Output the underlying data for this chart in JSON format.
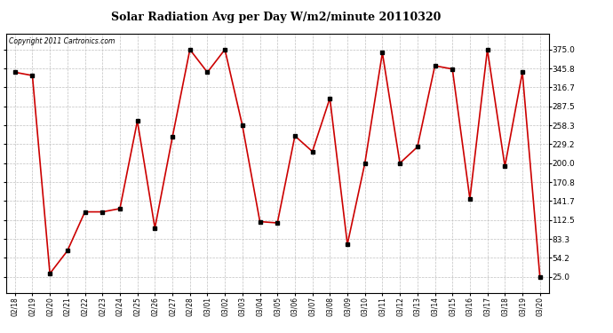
{
  "title": "Solar Radiation Avg per Day W/m2/minute 20110320",
  "copyright": "Copyright 2011 Cartronics.com",
  "dates": [
    "02/18",
    "02/19",
    "02/20",
    "02/21",
    "02/22",
    "02/23",
    "02/24",
    "02/25",
    "02/26",
    "02/27",
    "02/28",
    "03/01",
    "03/02",
    "03/03",
    "03/04",
    "03/05",
    "03/06",
    "03/07",
    "03/08",
    "03/09",
    "03/10",
    "03/11",
    "03/12",
    "03/13",
    "03/14",
    "03/15",
    "03/16",
    "03/17",
    "03/18",
    "03/19",
    "03/20"
  ],
  "values": [
    340,
    335,
    30,
    65,
    125,
    125,
    130,
    265,
    100,
    240,
    375,
    340,
    375,
    258,
    110,
    108,
    242,
    218,
    300,
    75,
    200,
    370,
    200,
    225,
    350,
    345,
    145,
    375,
    195,
    340,
    25
  ],
  "line_color": "#cc0000",
  "marker_color": "#000000",
  "bg_color": "#ffffff",
  "plot_bg": "#ffffff",
  "grid_color": "#c0c0c0",
  "ylim": [
    0,
    400
  ],
  "yticks": [
    25.0,
    54.2,
    83.3,
    112.5,
    141.7,
    170.8,
    200.0,
    229.2,
    258.3,
    287.5,
    316.7,
    345.8,
    375.0
  ]
}
